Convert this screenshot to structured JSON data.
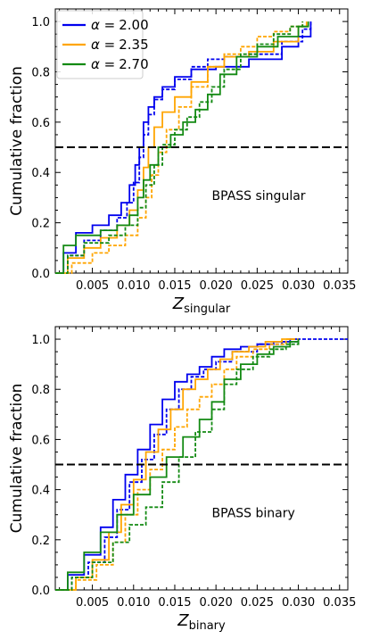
{
  "colors": {
    "alpha_2_00": "#0000ee",
    "alpha_2_35": "#ffa500",
    "alpha_2_70": "#138a13",
    "reference_line": "#000000"
  },
  "legend": {
    "placement": "top-left",
    "symbol": "α =",
    "entries": [
      "2.00",
      "2.35",
      "2.70"
    ]
  },
  "chart_data": [
    {
      "type": "line",
      "annotation": "BPASS singular",
      "xlabel_main": "Z",
      "xlabel_sub": "singular",
      "ylabel": "Cumulative fraction",
      "xlim": [
        0.0005,
        0.036
      ],
      "ylim": [
        0,
        1.05
      ],
      "xticks": [
        "0.005",
        "0.010",
        "0.015",
        "0.020",
        "0.025",
        "0.030",
        "0.035"
      ],
      "yticks": [
        "0.0",
        "0.2",
        "0.4",
        "0.6",
        "0.8",
        "1.0"
      ],
      "hline": 0.5,
      "grid": false,
      "series": [
        {
          "name": "α = 2.00",
          "color_key": "alpha_2_00",
          "style": "solid",
          "x": [
            0.0005,
            0.0015,
            0.003,
            0.005,
            0.007,
            0.0085,
            0.0095,
            0.0102,
            0.0107,
            0.0112,
            0.0118,
            0.0125,
            0.0135,
            0.015,
            0.017,
            0.02,
            0.024,
            0.028,
            0.03,
            0.0315
          ],
          "y": [
            0.0,
            0.08,
            0.16,
            0.19,
            0.23,
            0.28,
            0.35,
            0.43,
            0.5,
            0.6,
            0.66,
            0.7,
            0.74,
            0.78,
            0.81,
            0.82,
            0.85,
            0.9,
            0.94,
            1.0
          ]
        },
        {
          "name": "α = 2.00",
          "color_key": "alpha_2_00",
          "style": "dashed",
          "x": [
            0.0005,
            0.002,
            0.004,
            0.006,
            0.008,
            0.0092,
            0.01,
            0.0107,
            0.0112,
            0.0118,
            0.0125,
            0.0135,
            0.015,
            0.017,
            0.019,
            0.021,
            0.024,
            0.028,
            0.0305,
            0.0315
          ],
          "y": [
            0.0,
            0.07,
            0.13,
            0.17,
            0.22,
            0.28,
            0.36,
            0.46,
            0.55,
            0.63,
            0.69,
            0.73,
            0.77,
            0.82,
            0.85,
            0.86,
            0.87,
            0.92,
            0.97,
            1.0
          ]
        },
        {
          "name": "α = 2.35",
          "color_key": "alpha_2_35",
          "style": "solid",
          "x": [
            0.0005,
            0.002,
            0.004,
            0.006,
            0.008,
            0.0095,
            0.0105,
            0.0112,
            0.0118,
            0.0125,
            0.0135,
            0.015,
            0.017,
            0.019,
            0.021,
            0.024,
            0.027,
            0.03,
            0.031
          ],
          "y": [
            0.0,
            0.06,
            0.1,
            0.14,
            0.19,
            0.25,
            0.33,
            0.42,
            0.5,
            0.58,
            0.64,
            0.7,
            0.76,
            0.82,
            0.86,
            0.88,
            0.92,
            0.98,
            1.0
          ]
        },
        {
          "name": "α = 2.35",
          "color_key": "alpha_2_35",
          "style": "dashed",
          "x": [
            0.0005,
            0.0025,
            0.005,
            0.007,
            0.009,
            0.0105,
            0.0115,
            0.0122,
            0.013,
            0.014,
            0.0155,
            0.017,
            0.019,
            0.021,
            0.023,
            0.025,
            0.027,
            0.029,
            0.0305
          ],
          "y": [
            0.0,
            0.04,
            0.08,
            0.11,
            0.15,
            0.22,
            0.3,
            0.39,
            0.48,
            0.57,
            0.66,
            0.74,
            0.82,
            0.87,
            0.9,
            0.94,
            0.96,
            0.98,
            1.0
          ]
        },
        {
          "name": "α = 2.70",
          "color_key": "alpha_2_70",
          "style": "solid",
          "x": [
            0.0005,
            0.0015,
            0.003,
            0.006,
            0.008,
            0.0095,
            0.0105,
            0.0112,
            0.012,
            0.013,
            0.0145,
            0.016,
            0.0175,
            0.019,
            0.0205,
            0.0225,
            0.025,
            0.0275,
            0.03,
            0.0312
          ],
          "y": [
            0.0,
            0.11,
            0.15,
            0.17,
            0.19,
            0.23,
            0.3,
            0.37,
            0.43,
            0.5,
            0.55,
            0.6,
            0.65,
            0.71,
            0.79,
            0.86,
            0.9,
            0.94,
            0.98,
            1.0
          ]
        },
        {
          "name": "α = 2.70",
          "color_key": "alpha_2_70",
          "style": "dashed",
          "x": [
            0.0005,
            0.002,
            0.004,
            0.007,
            0.009,
            0.0105,
            0.0115,
            0.0125,
            0.0135,
            0.015,
            0.0165,
            0.018,
            0.0195,
            0.021,
            0.023,
            0.025,
            0.027,
            0.029,
            0.0305
          ],
          "y": [
            0.0,
            0.07,
            0.12,
            0.15,
            0.19,
            0.26,
            0.35,
            0.43,
            0.51,
            0.57,
            0.62,
            0.68,
            0.74,
            0.81,
            0.87,
            0.91,
            0.95,
            0.98,
            1.0
          ]
        }
      ]
    },
    {
      "type": "line",
      "annotation": "BPASS binary",
      "xlabel_main": "Z",
      "xlabel_sub": "binary",
      "ylabel": "Cumulative fraction",
      "xlim": [
        0.0005,
        0.036
      ],
      "ylim": [
        0,
        1.05
      ],
      "xticks": [
        "0.005",
        "0.010",
        "0.015",
        "0.020",
        "0.025",
        "0.030",
        "0.035"
      ],
      "yticks": [
        "0.0",
        "0.2",
        "0.4",
        "0.6",
        "0.8",
        "1.0"
      ],
      "hline": 0.5,
      "grid": false,
      "series": [
        {
          "name": "α = 2.00",
          "color_key": "alpha_2_00",
          "style": "solid",
          "x": [
            0.0005,
            0.002,
            0.004,
            0.006,
            0.0075,
            0.009,
            0.0105,
            0.012,
            0.0135,
            0.015,
            0.0165,
            0.018,
            0.0195,
            0.021,
            0.023,
            0.025,
            0.027,
            0.029,
            0.03
          ],
          "y": [
            0.0,
            0.06,
            0.14,
            0.25,
            0.36,
            0.46,
            0.56,
            0.66,
            0.76,
            0.83,
            0.86,
            0.89,
            0.93,
            0.96,
            0.97,
            0.98,
            0.99,
            1.0,
            1.0
          ]
        },
        {
          "name": "α = 2.00",
          "color_key": "alpha_2_00",
          "style": "dashed",
          "x": [
            0.0005,
            0.0025,
            0.0045,
            0.0065,
            0.008,
            0.0095,
            0.011,
            0.0125,
            0.014,
            0.0155,
            0.017,
            0.0185,
            0.02,
            0.022,
            0.025,
            0.028,
            0.03,
            0.033,
            0.036
          ],
          "y": [
            0.0,
            0.05,
            0.11,
            0.21,
            0.32,
            0.43,
            0.52,
            0.62,
            0.72,
            0.8,
            0.85,
            0.88,
            0.91,
            0.95,
            0.98,
            0.99,
            1.0,
            1.0,
            1.0
          ]
        },
        {
          "name": "α = 2.35",
          "color_key": "alpha_2_35",
          "style": "solid",
          "x": [
            0.0005,
            0.003,
            0.005,
            0.007,
            0.0085,
            0.01,
            0.0115,
            0.013,
            0.0145,
            0.016,
            0.0175,
            0.019,
            0.0205,
            0.022,
            0.024,
            0.026,
            0.028,
            0.0295
          ],
          "y": [
            0.0,
            0.05,
            0.12,
            0.23,
            0.34,
            0.44,
            0.55,
            0.64,
            0.72,
            0.8,
            0.84,
            0.88,
            0.92,
            0.95,
            0.97,
            0.99,
            1.0,
            1.0
          ]
        },
        {
          "name": "α = 2.35",
          "color_key": "alpha_2_35",
          "style": "dashed",
          "x": [
            0.0005,
            0.003,
            0.0055,
            0.0075,
            0.009,
            0.0105,
            0.012,
            0.0135,
            0.015,
            0.0165,
            0.018,
            0.0195,
            0.021,
            0.0225,
            0.0245,
            0.0265,
            0.0285,
            0.03
          ],
          "y": [
            0.0,
            0.04,
            0.1,
            0.19,
            0.3,
            0.4,
            0.48,
            0.56,
            0.65,
            0.72,
            0.77,
            0.82,
            0.88,
            0.93,
            0.96,
            0.98,
            1.0,
            1.0
          ]
        },
        {
          "name": "α = 2.70",
          "color_key": "alpha_2_70",
          "style": "solid",
          "x": [
            0.0005,
            0.002,
            0.004,
            0.006,
            0.008,
            0.01,
            0.012,
            0.014,
            0.016,
            0.018,
            0.0195,
            0.021,
            0.023,
            0.025,
            0.027,
            0.029,
            0.03
          ],
          "y": [
            0.0,
            0.07,
            0.15,
            0.23,
            0.3,
            0.38,
            0.45,
            0.53,
            0.61,
            0.68,
            0.75,
            0.84,
            0.9,
            0.94,
            0.97,
            0.99,
            1.0
          ]
        },
        {
          "name": "α = 2.70",
          "color_key": "alpha_2_70",
          "style": "dashed",
          "x": [
            0.0005,
            0.0025,
            0.005,
            0.0075,
            0.0095,
            0.0115,
            0.0135,
            0.0155,
            0.0175,
            0.0195,
            0.021,
            0.0225,
            0.0245,
            0.0265,
            0.0285,
            0.03
          ],
          "y": [
            0.0,
            0.05,
            0.11,
            0.19,
            0.26,
            0.33,
            0.43,
            0.53,
            0.63,
            0.72,
            0.82,
            0.88,
            0.93,
            0.96,
            0.98,
            1.0
          ]
        }
      ]
    }
  ]
}
